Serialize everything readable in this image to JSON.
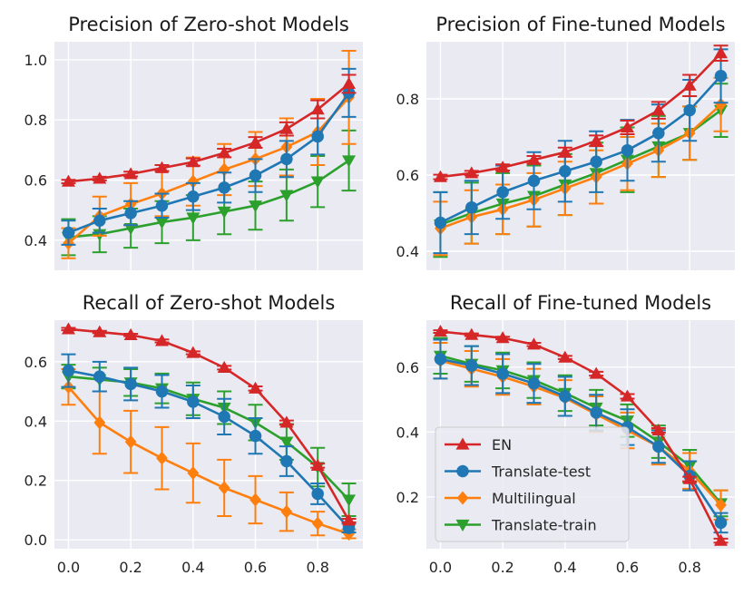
{
  "chart_data": [
    {
      "type": "line",
      "title": "Precision of Zero-shot Models",
      "xlabel": "",
      "ylabel": "",
      "xlim": [
        -0.045,
        0.945
      ],
      "ylim": [
        0.3,
        1.06
      ],
      "xticks": [
        "0.0",
        "0.2",
        "0.4",
        "0.6",
        "0.8"
      ],
      "yticks": [
        0.4,
        0.6,
        0.8,
        1.0
      ],
      "ytick_labels": [
        "0.4",
        "0.6",
        "0.8",
        "1.0"
      ],
      "show_xtick_labels": false,
      "x": [
        0.0,
        0.1,
        0.2,
        0.3,
        0.4,
        0.5,
        0.6,
        0.7,
        0.8,
        0.9
      ],
      "series": [
        {
          "name": "EN",
          "values": [
            0.595,
            0.605,
            0.62,
            0.64,
            0.66,
            0.69,
            0.725,
            0.77,
            0.835,
            0.92
          ],
          "errors": [
            0.006,
            0.006,
            0.008,
            0.01,
            0.012,
            0.014,
            0.018,
            0.022,
            0.03,
            0.03
          ]
        },
        {
          "name": "Translate-test",
          "values": [
            0.425,
            0.465,
            0.49,
            0.515,
            0.545,
            0.575,
            0.615,
            0.67,
            0.745,
            0.89
          ],
          "errors": [
            0.04,
            0.04,
            0.04,
            0.04,
            0.045,
            0.05,
            0.055,
            0.06,
            0.06,
            0.08
          ]
        },
        {
          "name": "Multilingual",
          "values": [
            0.39,
            0.48,
            0.52,
            0.555,
            0.595,
            0.635,
            0.67,
            0.71,
            0.76,
            0.875
          ],
          "errors": [
            0.05,
            0.065,
            0.07,
            0.075,
            0.08,
            0.085,
            0.09,
            0.095,
            0.11,
            0.155
          ]
        },
        {
          "name": "Translate-train",
          "values": [
            0.41,
            0.42,
            0.44,
            0.46,
            0.475,
            0.495,
            0.515,
            0.55,
            0.595,
            0.665
          ],
          "errors": [
            0.06,
            0.06,
            0.065,
            0.07,
            0.075,
            0.075,
            0.08,
            0.085,
            0.085,
            0.1
          ]
        }
      ]
    },
    {
      "type": "line",
      "title": "Precision of Fine-tuned Models",
      "xlabel": "",
      "ylabel": "",
      "xlim": [
        -0.045,
        0.945
      ],
      "ylim": [
        0.35,
        0.95
      ],
      "xticks": [
        "0.0",
        "0.2",
        "0.4",
        "0.6",
        "0.8"
      ],
      "yticks": [
        0.4,
        0.6,
        0.8
      ],
      "ytick_labels": [
        "0.4",
        "0.6",
        "0.8"
      ],
      "show_xtick_labels": false,
      "x": [
        0.0,
        0.1,
        0.2,
        0.3,
        0.4,
        0.5,
        0.6,
        0.7,
        0.8,
        0.9
      ],
      "series": [
        {
          "name": "EN",
          "values": [
            0.595,
            0.605,
            0.62,
            0.64,
            0.66,
            0.69,
            0.725,
            0.77,
            0.835,
            0.92
          ],
          "errors": [
            0.006,
            0.006,
            0.008,
            0.01,
            0.012,
            0.014,
            0.018,
            0.022,
            0.028,
            0.02
          ]
        },
        {
          "name": "Translate-test",
          "values": [
            0.475,
            0.515,
            0.555,
            0.585,
            0.61,
            0.635,
            0.665,
            0.71,
            0.77,
            0.86
          ],
          "errors": [
            0.08,
            0.07,
            0.07,
            0.075,
            0.08,
            0.08,
            0.08,
            0.075,
            0.08,
            0.07
          ]
        },
        {
          "name": "Multilingual",
          "values": [
            0.46,
            0.49,
            0.51,
            0.535,
            0.565,
            0.595,
            0.63,
            0.665,
            0.71,
            0.785
          ],
          "errors": [
            0.07,
            0.07,
            0.065,
            0.07,
            0.07,
            0.07,
            0.07,
            0.07,
            0.07,
            0.07
          ]
        },
        {
          "name": "Translate-train",
          "values": [
            0.47,
            0.5,
            0.525,
            0.545,
            0.575,
            0.605,
            0.64,
            0.675,
            0.71,
            0.77
          ],
          "errors": [
            0.085,
            0.08,
            0.08,
            0.08,
            0.08,
            0.08,
            0.085,
            0.08,
            0.07,
            0.07
          ]
        }
      ]
    },
    {
      "type": "line",
      "title": "Recall of Zero-shot Models",
      "xlabel": "",
      "ylabel": "",
      "xlim": [
        -0.045,
        0.945
      ],
      "ylim": [
        -0.03,
        0.74
      ],
      "xticks": [
        "0.0",
        "0.2",
        "0.4",
        "0.6",
        "0.8"
      ],
      "yticks": [
        0.0,
        0.2,
        0.4,
        0.6
      ],
      "ytick_labels": [
        "0.0",
        "0.2",
        "0.4",
        "0.6"
      ],
      "show_xtick_labels": true,
      "x": [
        0.0,
        0.1,
        0.2,
        0.3,
        0.4,
        0.5,
        0.6,
        0.7,
        0.8,
        0.9
      ],
      "series": [
        {
          "name": "EN",
          "values": [
            0.71,
            0.7,
            0.69,
            0.67,
            0.63,
            0.58,
            0.51,
            0.395,
            0.25,
            0.065
          ],
          "errors": [
            0.004,
            0.004,
            0.004,
            0.005,
            0.005,
            0.006,
            0.007,
            0.007,
            0.007,
            0.006
          ]
        },
        {
          "name": "Translate-test",
          "values": [
            0.57,
            0.55,
            0.525,
            0.5,
            0.465,
            0.415,
            0.35,
            0.265,
            0.155,
            0.04
          ],
          "errors": [
            0.055,
            0.05,
            0.055,
            0.055,
            0.055,
            0.06,
            0.06,
            0.05,
            0.035,
            0.015
          ]
        },
        {
          "name": "Multilingual",
          "values": [
            0.515,
            0.395,
            0.33,
            0.275,
            0.225,
            0.175,
            0.135,
            0.095,
            0.055,
            0.02
          ],
          "errors": [
            0.06,
            0.105,
            0.105,
            0.105,
            0.1,
            0.095,
            0.08,
            0.065,
            0.04,
            0.015
          ]
        },
        {
          "name": "Translate-train",
          "values": [
            0.55,
            0.54,
            0.53,
            0.51,
            0.475,
            0.445,
            0.395,
            0.33,
            0.245,
            0.135
          ],
          "errors": [
            0.04,
            0.04,
            0.045,
            0.05,
            0.055,
            0.055,
            0.06,
            0.06,
            0.065,
            0.055
          ]
        }
      ]
    },
    {
      "type": "line",
      "title": "Recall of Fine-tuned Models",
      "xlabel": "",
      "ylabel": "",
      "xlim": [
        -0.045,
        0.945
      ],
      "ylim": [
        0.04,
        0.745
      ],
      "xticks": [
        "0.0",
        "0.2",
        "0.4",
        "0.6",
        "0.8"
      ],
      "yticks": [
        0.2,
        0.4,
        0.6
      ],
      "ytick_labels": [
        "0.2",
        "0.4",
        "0.6"
      ],
      "show_xtick_labels": true,
      "legend": "lower-left",
      "x": [
        0.0,
        0.1,
        0.2,
        0.3,
        0.4,
        0.5,
        0.6,
        0.7,
        0.8,
        0.9
      ],
      "series": [
        {
          "name": "EN",
          "values": [
            0.71,
            0.7,
            0.69,
            0.67,
            0.63,
            0.58,
            0.51,
            0.405,
            0.255,
            0.065
          ],
          "errors": [
            0.004,
            0.004,
            0.004,
            0.005,
            0.005,
            0.006,
            0.007,
            0.007,
            0.007,
            0.006
          ]
        },
        {
          "name": "Translate-test",
          "values": [
            0.625,
            0.605,
            0.58,
            0.55,
            0.51,
            0.46,
            0.415,
            0.355,
            0.265,
            0.12
          ],
          "errors": [
            0.06,
            0.06,
            0.06,
            0.06,
            0.06,
            0.055,
            0.055,
            0.05,
            0.045,
            0.03
          ]
        },
        {
          "name": "Multilingual",
          "values": [
            0.62,
            0.595,
            0.57,
            0.54,
            0.505,
            0.455,
            0.405,
            0.355,
            0.28,
            0.175
          ],
          "errors": [
            0.055,
            0.055,
            0.055,
            0.055,
            0.055,
            0.055,
            0.055,
            0.055,
            0.055,
            0.045
          ]
        },
        {
          "name": "Translate-train",
          "values": [
            0.635,
            0.61,
            0.59,
            0.56,
            0.52,
            0.475,
            0.435,
            0.37,
            0.295,
            0.18
          ],
          "errors": [
            0.055,
            0.055,
            0.055,
            0.055,
            0.055,
            0.055,
            0.05,
            0.05,
            0.05,
            0.04
          ]
        }
      ]
    }
  ],
  "legend": [
    {
      "name": "EN",
      "color": "#d62728",
      "marker": "triangle-up"
    },
    {
      "name": "Translate-test",
      "color": "#1f77b4",
      "marker": "circle"
    },
    {
      "name": "Multilingual",
      "color": "#ff7f0e",
      "marker": "diamond"
    },
    {
      "name": "Translate-train",
      "color": "#2ca02c",
      "marker": "triangle-down"
    }
  ],
  "style": {
    "plot_background": "#eaeaf2",
    "grid_color": "#ffffff",
    "grid": true
  }
}
